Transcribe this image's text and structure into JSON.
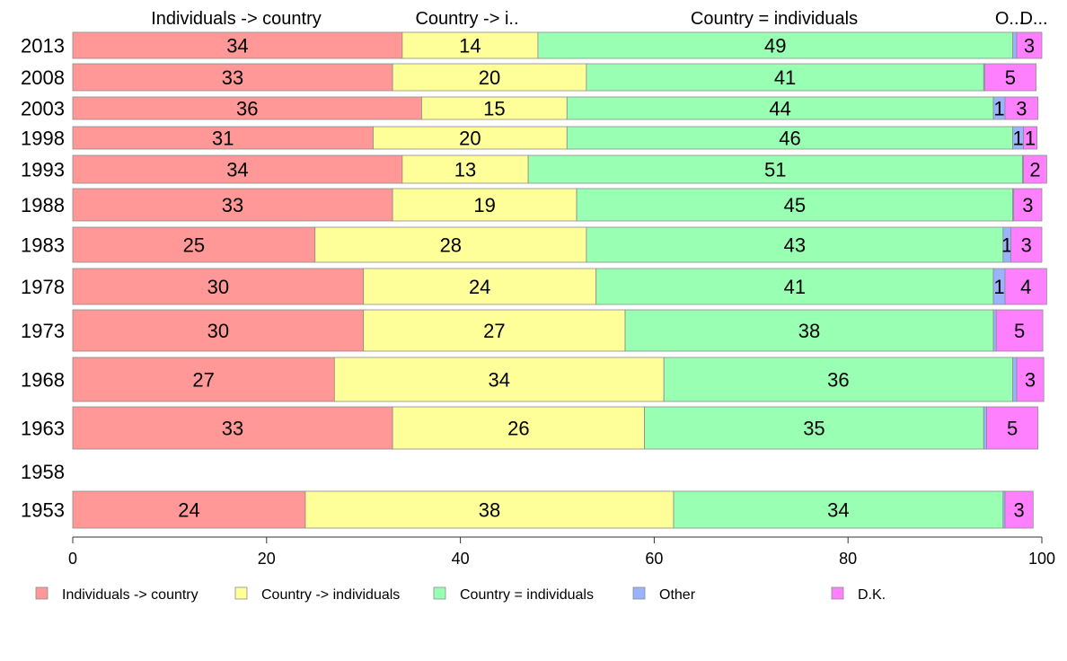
{
  "chart_data": {
    "type": "bar",
    "orientation": "horizontal",
    "stacked": true,
    "categories": [
      "2013",
      "2008",
      "2003",
      "1998",
      "1993",
      "1988",
      "1983",
      "1978",
      "1973",
      "1968",
      "1963",
      "1958",
      "1953"
    ],
    "series": [
      {
        "name": "Individuals -> country",
        "color": "#ff9896",
        "values": [
          34,
          33,
          36,
          31,
          34,
          33,
          25,
          30,
          30,
          27,
          33,
          null,
          24
        ],
        "labels": [
          "34",
          "33",
          "36",
          "31",
          "34",
          "33",
          "25",
          "30",
          "30",
          "27",
          "33",
          "",
          "24"
        ]
      },
      {
        "name": "Country -> individuals",
        "color": "#ffff99",
        "values": [
          14,
          20,
          15,
          20,
          13,
          19,
          28,
          24,
          27,
          34,
          26,
          null,
          38
        ],
        "labels": [
          "14",
          "20",
          "15",
          "20",
          "13",
          "19",
          "28",
          "24",
          "27",
          "34",
          "26",
          "",
          "38"
        ]
      },
      {
        "name": "Country = individuals",
        "color": "#99ffb3",
        "values": [
          49,
          41,
          44,
          46,
          51,
          45,
          43,
          41,
          38,
          36,
          35,
          null,
          34
        ],
        "labels": [
          "49",
          "41",
          "44",
          "46",
          "51",
          "45",
          "43",
          "41",
          "38",
          "36",
          "35",
          "",
          "34"
        ]
      },
      {
        "name": "Other",
        "color": "#99b3ff",
        "values": [
          0.4,
          0.1,
          1.2,
          1.1,
          0.1,
          0.1,
          0.8,
          1.2,
          0.3,
          0.4,
          0.3,
          null,
          0.2
        ],
        "labels": [
          "",
          "",
          "1",
          "1",
          "",
          "",
          "1",
          "1",
          "",
          "",
          "",
          "",
          ""
        ]
      },
      {
        "name": "D.K.",
        "color": "#ff80ff",
        "values": [
          2.6,
          5.3,
          3.4,
          1.4,
          2.4,
          2.9,
          3.2,
          4.3,
          4.8,
          2.8,
          5.3,
          null,
          2.9
        ],
        "labels": [
          "3",
          "5",
          "3",
          "1",
          "2",
          "3",
          "3",
          "4",
          "5",
          "3",
          "5",
          "",
          "3"
        ]
      }
    ],
    "top_labels": [
      "Individuals -> country",
      "Country -> i..",
      "Country = individuals",
      "O...",
      "D..."
    ],
    "xlim": [
      0,
      100
    ],
    "xticks": [
      "0",
      "20",
      "40",
      "60",
      "80",
      "100"
    ],
    "legend_position": "bottom",
    "grid": false
  }
}
